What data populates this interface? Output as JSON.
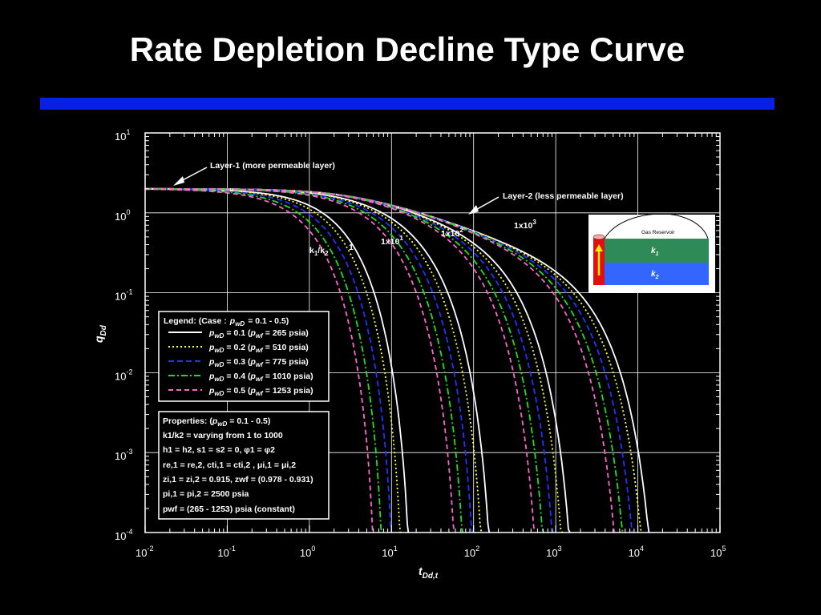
{
  "slide": {
    "title": "Rate Depletion Decline Type Curve",
    "accent_bar_color": "#0a1fe6"
  },
  "chart_data": {
    "type": "line",
    "title": "Rate Depletion Decline Type Curve",
    "xlabel": "t",
    "xlabel_sub": "Dd,t",
    "ylabel": "q",
    "ylabel_sub": "Dd",
    "x_scale": "log",
    "y_scale": "log",
    "xlim": [
      0.01,
      100000
    ],
    "ylim": [
      0.0001,
      10
    ],
    "grid": true,
    "x_ticks": [
      {
        "base": "10",
        "exp": "-2"
      },
      {
        "base": "10",
        "exp": "-1"
      },
      {
        "base": "10",
        "exp": "0"
      },
      {
        "base": "10",
        "exp": "1"
      },
      {
        "base": "10",
        "exp": "2"
      },
      {
        "base": "10",
        "exp": "3"
      },
      {
        "base": "10",
        "exp": "4"
      },
      {
        "base": "10",
        "exp": "5"
      }
    ],
    "y_ticks": [
      {
        "base": "10",
        "exp": "1"
      },
      {
        "base": "10",
        "exp": "0"
      },
      {
        "base": "10",
        "exp": "-1"
      },
      {
        "base": "10",
        "exp": "-2"
      },
      {
        "base": "10",
        "exp": "-3"
      },
      {
        "base": "10",
        "exp": "-4"
      }
    ],
    "curve_families": [
      {
        "label_base": "1",
        "label_exp": "",
        "early_q": 1.2,
        "late_t": 2.0
      },
      {
        "label_base": "1x10",
        "label_exp": "1",
        "early_q": 1.0,
        "late_t": 20
      },
      {
        "label_base": "1x10",
        "label_exp": "2",
        "early_q": 0.95,
        "late_t": 200
      },
      {
        "label_base": "1x10",
        "label_exp": "3",
        "early_q": 0.9,
        "late_t": 2000
      }
    ],
    "ratio_label": {
      "text": "k",
      "sub1": "1",
      "sep": "/k",
      "sub2": "2"
    },
    "series": [
      {
        "name_var": "p",
        "name_sub": "wD",
        "value": "= 0.1 (",
        "pwf": "p",
        "pwf_sub": "wf",
        "pwf_val": "= 265 psia)",
        "color": "#ffffff",
        "dash": "",
        "tmax_shift": 1.0
      },
      {
        "name_var": "p",
        "name_sub": "wD",
        "value": "= 0.2 (",
        "pwf": "p",
        "pwf_sub": "wf",
        "pwf_val": "= 510 psia)",
        "color": "#ffff33",
        "dash": "2,3",
        "tmax_shift": 0.8
      },
      {
        "name_var": "p",
        "name_sub": "wD",
        "value": "= 0.3 (",
        "pwf": "p",
        "pwf_sub": "wf",
        "pwf_val": "= 775 psia)",
        "color": "#2233ff",
        "dash": "7,4",
        "tmax_shift": 0.62
      },
      {
        "name_var": "p",
        "name_sub": "wD",
        "value": "= 0.4 (",
        "pwf": "p",
        "pwf_sub": "wf",
        "pwf_val": "= 1010 psia)",
        "color": "#22dd22",
        "dash": "8,3,2,3",
        "tmax_shift": 0.47
      },
      {
        "name_var": "p",
        "name_sub": "wD",
        "value": "= 0.5 (",
        "pwf": "p",
        "pwf_sub": "wf",
        "pwf_val": "= 1253 psia)",
        "color": "#ff66cc",
        "dash": "6,4",
        "tmax_shift": 0.37
      }
    ],
    "legend": {
      "header": "Legend:  (Case :",
      "header_var": "p",
      "header_sub": "wD",
      "header_tail": "=  0.1 - 0.5)",
      "placement": "lower-left"
    },
    "annotations": {
      "layer1": "Layer-1 (more permeable layer)",
      "layer2": "Layer-2 (less permeable layer)"
    },
    "properties": {
      "header": "Properties: (",
      "header_var": "p",
      "header_sub": "wD",
      "header_tail": "= 0.1 - 0.5)",
      "lines": [
        "k1/k2 = varying from 1 to 1000",
        "h1 = h2, s1 = s2 = 0, φ1 = φ2",
        "re,1 = re,2, cti,1 = cti,2 , μi,1 = μi,2",
        "zi,1 = zi,2 = 0.915, zwf = (0.978 - 0.931)",
        "pi,1 = pi,2 = 2500 psia",
        "pwf = (265 - 1253) psia (constant)"
      ]
    },
    "inset": {
      "title": "Gas Reservoir",
      "layer1": "k",
      "layer1_sub": "1",
      "layer2": "k",
      "layer2_sub": "2",
      "layer1_color": "#2e8b57",
      "layer2_color": "#3366ff",
      "well_color": "#dd1111"
    }
  }
}
